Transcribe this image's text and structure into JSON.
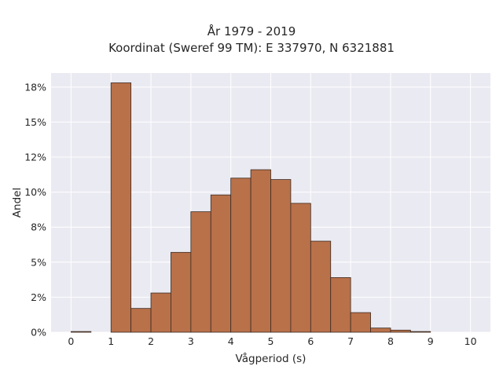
{
  "chart_data": {
    "type": "bar",
    "title_lines": [
      "År 1979 - 2019",
      "Koordinat (Sweref 99 TM): E 337970, N 6321881"
    ],
    "xlabel": "Vågperiod (s)",
    "ylabel": "Andel",
    "xlim": [
      -0.5,
      10.5
    ],
    "ylim": [
      0,
      18.5
    ],
    "x_ticks": [
      0,
      1,
      2,
      3,
      4,
      5,
      6,
      7,
      8,
      9,
      10
    ],
    "y_ticks": [
      {
        "value": 0,
        "label": "0%"
      },
      {
        "value": 2.5,
        "label": "2%"
      },
      {
        "value": 5,
        "label": "5%"
      },
      {
        "value": 7.5,
        "label": "8%"
      },
      {
        "value": 10,
        "label": "10%"
      },
      {
        "value": 12.5,
        "label": "12%"
      },
      {
        "value": 15,
        "label": "15%"
      },
      {
        "value": 17.5,
        "label": "18%"
      }
    ],
    "bin_width": 0.5,
    "bins": [
      {
        "x_start": 0.0,
        "value": 0.05
      },
      {
        "x_start": 1.0,
        "value": 17.8
      },
      {
        "x_start": 1.5,
        "value": 1.7
      },
      {
        "x_start": 2.0,
        "value": 2.8
      },
      {
        "x_start": 2.5,
        "value": 5.7
      },
      {
        "x_start": 3.0,
        "value": 8.6
      },
      {
        "x_start": 3.5,
        "value": 9.8
      },
      {
        "x_start": 4.0,
        "value": 11.0
      },
      {
        "x_start": 4.5,
        "value": 11.6
      },
      {
        "x_start": 5.0,
        "value": 10.9
      },
      {
        "x_start": 5.5,
        "value": 9.2
      },
      {
        "x_start": 6.0,
        "value": 6.5
      },
      {
        "x_start": 6.5,
        "value": 3.9
      },
      {
        "x_start": 7.0,
        "value": 1.4
      },
      {
        "x_start": 7.5,
        "value": 0.3
      },
      {
        "x_start": 8.0,
        "value": 0.15
      },
      {
        "x_start": 8.5,
        "value": 0.05
      }
    ],
    "grid": true,
    "colors": {
      "bar_fill": "#b9714a",
      "bar_edge": "#3b2a20",
      "plot_background": "#eaeaf2",
      "grid": "#ffffff",
      "text": "#262626"
    }
  }
}
